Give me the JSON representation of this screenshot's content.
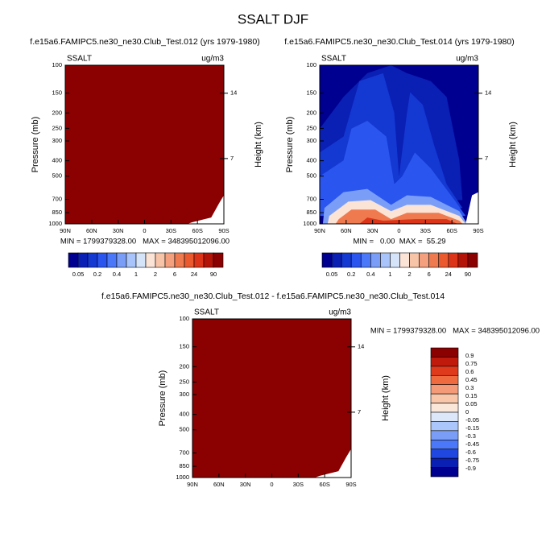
{
  "title": "SSALT DJF",
  "chart_data": [
    {
      "type": "contour",
      "title": "f.e15a6.FAMIPC5.ne30_ne30.Club_Test.012 (yrs 1979-1980)",
      "left_label": "SSALT",
      "right_label": "ug/m3",
      "ylabel": "Pressure (mb)",
      "y2label": "Height (km)",
      "x": [
        "90N",
        "60N",
        "30N",
        "0",
        "30S",
        "60S",
        "90S"
      ],
      "ylim": [
        100,
        1000
      ],
      "yticks": [
        100,
        150,
        200,
        250,
        300,
        400,
        500,
        700,
        850,
        1000
      ],
      "log_y": true,
      "y2lim": [
        0,
        17
      ],
      "y2ticks": [
        14,
        7
      ],
      "stats": "MIN = 1799379328.00   MAX = 348395012096.00",
      "colorbar": {
        "orientation": "horizontal",
        "colors": [
          "#000090",
          "#0a1fb4",
          "#1438d2",
          "#2a55ee",
          "#4a78f8",
          "#7a9ef8",
          "#a9c4fa",
          "#d6e4fa",
          "#fbe4d6",
          "#f8c4a8",
          "#f4a07e",
          "#f07a50",
          "#ea5a2e",
          "#dc3418",
          "#b41408",
          "#8b0000"
        ],
        "labels": [
          0.05,
          0.2,
          0.4,
          1,
          2,
          6,
          24,
          90
        ]
      }
    },
    {
      "type": "contour",
      "title": "f.e15a6.FAMIPC5.ne30_ne30.Club_Test.014 (yrs 1979-1980)",
      "left_label": "SSALT",
      "right_label": "ug/m3",
      "ylabel": "Pressure (mb)",
      "y2label": "Height (km)",
      "x": [
        "90N",
        "60N",
        "30N",
        "0",
        "30S",
        "60S",
        "90S"
      ],
      "ylim": [
        100,
        1000
      ],
      "yticks": [
        100,
        150,
        200,
        250,
        300,
        400,
        500,
        700,
        850,
        1000
      ],
      "log_y": true,
      "y2lim": [
        0,
        17
      ],
      "y2ticks": [
        14,
        7
      ],
      "stats": "MIN =   0.00  MAX =  55.29",
      "colorbar": {
        "orientation": "horizontal",
        "colors": [
          "#000090",
          "#0a1fb4",
          "#1438d2",
          "#2a55ee",
          "#4a78f8",
          "#7a9ef8",
          "#a9c4fa",
          "#d6e4fa",
          "#fbe4d6",
          "#f8c4a8",
          "#f4a07e",
          "#f07a50",
          "#ea5a2e",
          "#dc3418",
          "#b41408",
          "#8b0000"
        ],
        "labels": [
          0.05,
          0.2,
          0.4,
          1,
          2,
          6,
          24,
          90
        ]
      }
    },
    {
      "type": "contour",
      "title": "f.e15a6.FAMIPC5.ne30_ne30.Club_Test.012 - f.e15a6.FAMIPC5.ne30_ne30.Club_Test.014",
      "left_label": "SSALT",
      "right_label": "ug/m3",
      "ylabel": "Pressure (mb)",
      "y2label": "Height (km)",
      "x": [
        "90N",
        "60N",
        "30N",
        "0",
        "30S",
        "60S",
        "90S"
      ],
      "ylim": [
        100,
        1000
      ],
      "yticks": [
        100,
        150,
        200,
        250,
        300,
        400,
        500,
        700,
        850,
        1000
      ],
      "log_y": true,
      "y2lim": [
        0,
        17
      ],
      "y2ticks": [
        14,
        7
      ],
      "stats": "MIN = 1799379328.00   MAX = 348395012096.00",
      "colorbar": {
        "orientation": "vertical",
        "colors": [
          "#8b0000",
          "#c01a0c",
          "#e03a1c",
          "#f06a40",
          "#f59a78",
          "#f9c6aa",
          "#fbe6da",
          "#dce8fa",
          "#aac6fa",
          "#7a9ef8",
          "#4a78f8",
          "#2048e0",
          "#0a1fb4",
          "#000090"
        ],
        "labels": [
          0.9,
          0.75,
          0.6,
          0.45,
          0.3,
          0.15,
          0.05,
          0,
          -0.05,
          -0.15,
          -0.3,
          -0.45,
          -0.6,
          -0.75,
          -0.9
        ]
      }
    }
  ]
}
